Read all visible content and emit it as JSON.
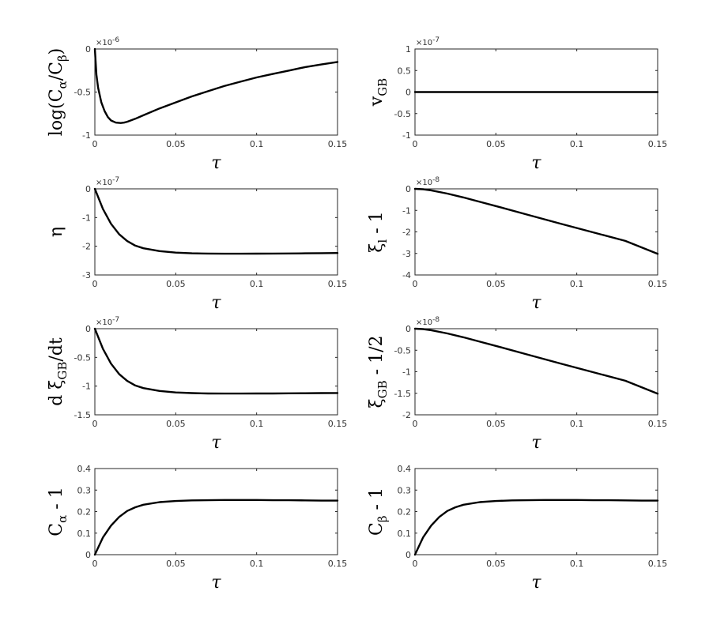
{
  "chart_data": [
    {
      "type": "line",
      "ylabel": "log(Cα/Cβ)",
      "xlabel": "τ",
      "exponent": "×10-6",
      "xlim": [
        0,
        0.15
      ],
      "ylim": [
        -1,
        0
      ],
      "xticks": [
        "0",
        "0.05",
        "0.1",
        "0.15"
      ],
      "yticks": [
        "-1",
        "-0.5",
        "0"
      ],
      "series": [
        {
          "x": [
            0,
            0.001,
            0.002,
            0.004,
            0.006,
            0.008,
            0.01,
            0.013,
            0.016,
            0.018,
            0.02,
            0.025,
            0.03,
            0.04,
            0.05,
            0.06,
            0.07,
            0.08,
            0.09,
            0.1,
            0.11,
            0.12,
            0.13,
            0.14,
            0.15
          ],
          "y": [
            0,
            -0.3,
            -0.45,
            -0.62,
            -0.72,
            -0.79,
            -0.83,
            -0.855,
            -0.86,
            -0.855,
            -0.845,
            -0.81,
            -0.77,
            -0.69,
            -0.62,
            -0.55,
            -0.49,
            -0.43,
            -0.38,
            -0.33,
            -0.29,
            -0.25,
            -0.21,
            -0.18,
            -0.15
          ]
        }
      ]
    },
    {
      "type": "line",
      "ylabel": "vGB",
      "xlabel": "τ",
      "exponent": "×10-7",
      "xlim": [
        0,
        0.15
      ],
      "ylim": [
        -1,
        1
      ],
      "xticks": [
        "0",
        "0.05",
        "0.1",
        "0.15"
      ],
      "yticks": [
        "-1",
        "-0.5",
        "0",
        "0.5",
        "1"
      ],
      "series": [
        {
          "x": [
            0,
            0.15
          ],
          "y": [
            0,
            0
          ]
        }
      ]
    },
    {
      "type": "line",
      "ylabel": "η",
      "xlabel": "τ",
      "exponent": "×10-7",
      "xlim": [
        0,
        0.15
      ],
      "ylim": [
        -3,
        0
      ],
      "xticks": [
        "0",
        "0.05",
        "0.1",
        "0.15"
      ],
      "yticks": [
        "-3",
        "-2",
        "-1",
        "0"
      ],
      "series": [
        {
          "x": [
            0,
            0.005,
            0.01,
            0.015,
            0.02,
            0.025,
            0.03,
            0.04,
            0.05,
            0.06,
            0.07,
            0.08,
            0.09,
            0.1,
            0.11,
            0.12,
            0.13,
            0.14,
            0.15
          ],
          "y": [
            0,
            -0.7,
            -1.22,
            -1.58,
            -1.82,
            -1.98,
            -2.07,
            -2.17,
            -2.22,
            -2.245,
            -2.255,
            -2.26,
            -2.26,
            -2.258,
            -2.255,
            -2.25,
            -2.245,
            -2.24,
            -2.235
          ]
        }
      ]
    },
    {
      "type": "line",
      "ylabel": "ξl - 1",
      "xlabel": "τ",
      "exponent": "×10-8",
      "xlim": [
        0,
        0.15
      ],
      "ylim": [
        -4,
        0
      ],
      "xticks": [
        "0",
        "0.05",
        "0.1",
        "0.15"
      ],
      "yticks": [
        "-4",
        "-3",
        "-2",
        "-1",
        "0"
      ],
      "series": [
        {
          "x": [
            0,
            0.005,
            0.01,
            0.02,
            0.03,
            0.04,
            0.05,
            0.07,
            0.09,
            0.11,
            0.13,
            0.15
          ],
          "y": [
            0,
            -0.02,
            -0.07,
            -0.22,
            -0.4,
            -0.6,
            -0.8,
            -1.21,
            -1.62,
            -2.02,
            -2.42,
            -3.02
          ]
        }
      ]
    },
    {
      "type": "line",
      "ylabel": "d ξGB/dt",
      "xlabel": "τ",
      "exponent": "×10-7",
      "xlim": [
        0,
        0.15
      ],
      "ylim": [
        -1.5,
        0
      ],
      "xticks": [
        "0",
        "0.05",
        "0.1",
        "0.15"
      ],
      "yticks": [
        "-1.5",
        "-1",
        "-0.5",
        "0"
      ],
      "series": [
        {
          "x": [
            0,
            0.005,
            0.01,
            0.015,
            0.02,
            0.025,
            0.03,
            0.04,
            0.05,
            0.06,
            0.07,
            0.08,
            0.09,
            0.1,
            0.11,
            0.12,
            0.13,
            0.14,
            0.15
          ],
          "y": [
            0,
            -0.35,
            -0.61,
            -0.79,
            -0.91,
            -0.99,
            -1.035,
            -1.085,
            -1.11,
            -1.122,
            -1.128,
            -1.13,
            -1.13,
            -1.129,
            -1.128,
            -1.126,
            -1.124,
            -1.122,
            -1.12
          ]
        }
      ]
    },
    {
      "type": "line",
      "ylabel": "ξGB - 1/2",
      "xlabel": "τ",
      "exponent": "×10-8",
      "xlim": [
        0,
        0.15
      ],
      "ylim": [
        -2,
        0
      ],
      "xticks": [
        "0",
        "0.05",
        "0.1",
        "0.15"
      ],
      "yticks": [
        "-2",
        "-1.5",
        "-1",
        "-0.5",
        "0"
      ],
      "series": [
        {
          "x": [
            0,
            0.005,
            0.01,
            0.02,
            0.03,
            0.04,
            0.05,
            0.07,
            0.09,
            0.11,
            0.13,
            0.15
          ],
          "y": [
            0,
            -0.01,
            -0.035,
            -0.11,
            -0.2,
            -0.3,
            -0.4,
            -0.605,
            -0.81,
            -1.01,
            -1.21,
            -1.51
          ]
        }
      ]
    },
    {
      "type": "line",
      "ylabel": "Cα - 1",
      "xlabel": "τ",
      "exponent": "",
      "xlim": [
        0,
        0.15
      ],
      "ylim": [
        0,
        0.4
      ],
      "xticks": [
        "0",
        "0.05",
        "0.1",
        "0.15"
      ],
      "yticks": [
        "0",
        "0.1",
        "0.2",
        "0.3",
        "0.4"
      ],
      "series": [
        {
          "x": [
            0,
            0.005,
            0.01,
            0.015,
            0.02,
            0.025,
            0.03,
            0.04,
            0.05,
            0.06,
            0.07,
            0.08,
            0.09,
            0.1,
            0.11,
            0.12,
            0.13,
            0.14,
            0.15
          ],
          "y": [
            0,
            0.08,
            0.135,
            0.175,
            0.203,
            0.22,
            0.232,
            0.244,
            0.249,
            0.252,
            0.253,
            0.254,
            0.254,
            0.254,
            0.253,
            0.253,
            0.252,
            0.251,
            0.251
          ]
        }
      ]
    },
    {
      "type": "line",
      "ylabel": "Cβ - 1",
      "xlabel": "τ",
      "exponent": "",
      "xlim": [
        0,
        0.15
      ],
      "ylim": [
        0,
        0.4
      ],
      "xticks": [
        "0",
        "0.05",
        "0.1",
        "0.15"
      ],
      "yticks": [
        "0",
        "0.1",
        "0.2",
        "0.3",
        "0.4"
      ],
      "series": [
        {
          "x": [
            0,
            0.005,
            0.01,
            0.015,
            0.02,
            0.025,
            0.03,
            0.04,
            0.05,
            0.06,
            0.07,
            0.08,
            0.09,
            0.1,
            0.11,
            0.12,
            0.13,
            0.14,
            0.15
          ],
          "y": [
            0,
            0.08,
            0.135,
            0.175,
            0.203,
            0.22,
            0.232,
            0.244,
            0.249,
            0.252,
            0.253,
            0.254,
            0.254,
            0.254,
            0.253,
            0.253,
            0.252,
            0.251,
            0.251
          ]
        }
      ]
    }
  ]
}
